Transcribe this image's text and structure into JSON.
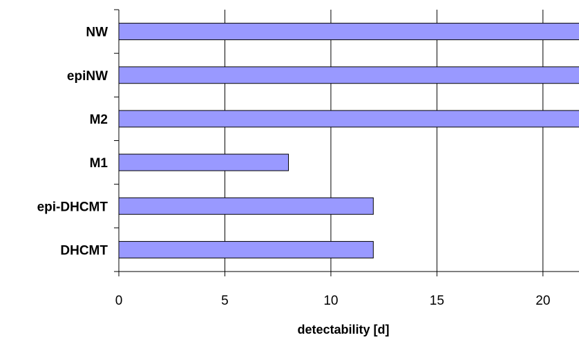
{
  "chart_data": {
    "type": "bar",
    "orientation": "horizontal",
    "categories": [
      "NW",
      "epiNW",
      "M2",
      "M1",
      "epi-DHCMT",
      "DHCMT"
    ],
    "values": [
      22,
      22,
      22,
      8,
      12,
      12
    ],
    "value_clipped_at_axis_end": [
      true,
      true,
      true,
      false,
      false,
      false
    ],
    "xlabel": "detectability [d]",
    "ylabel": "",
    "xlim": [
      0,
      21.7
    ],
    "xticks": [
      0,
      5,
      10,
      15,
      20
    ],
    "tick_labels": [
      "0",
      "5",
      "10",
      "15",
      "20"
    ],
    "grid": {
      "vertical": true,
      "horizontal": false
    },
    "legend": "none",
    "colors": {
      "bar_fill": "#9999ff",
      "bar_stroke": "#000000",
      "grid": "#000000",
      "axis": "#000000"
    }
  }
}
